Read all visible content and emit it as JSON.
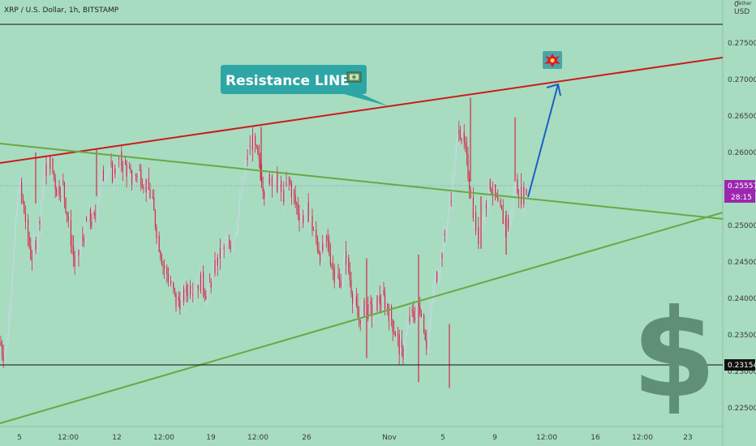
{
  "header": {
    "symbol": "XRP / U.S. Dollar, 1h, BITSTAMP",
    "top_right": "0",
    "currency_code": "USD",
    "currency_partial": "Tether"
  },
  "annotation": {
    "label": "Resistance LINE"
  },
  "price": {
    "current": "0.25557",
    "countdown": "28:15",
    "support": "0.23154"
  },
  "colors": {
    "background": "#a7dcc0",
    "candle_up": "#c0d9df",
    "candle_down": "#d8264a",
    "resistance_line": "#cc1b1b",
    "trend_line": "#6aa843",
    "arrow": "#1a5fc4",
    "callout": "#2ea6a6",
    "price_tag": "#9b27af",
    "dollar_sign": "#5f8f77"
  },
  "chart_data": {
    "type": "candlestick",
    "title": "XRP / U.S. Dollar, 1h, BITSTAMP",
    "y_axis": {
      "unit": "USD",
      "range": [
        0.2227,
        0.2812
      ],
      "ticks": [
        "0.27500",
        "0.27000",
        "0.26500",
        "0.26000",
        "0.25500",
        "0.25000",
        "0.24500",
        "0.24000",
        "0.23500",
        "0.23000",
        "0.22500"
      ]
    },
    "x_axis": {
      "ticks": [
        "5",
        "12:00",
        "12",
        "12:00",
        "19",
        "12:00",
        "26",
        "Nov",
        "5",
        "9",
        "12:00",
        "16",
        "12:00",
        "23"
      ]
    },
    "trend_lines": [
      {
        "name": "Resistance LINE",
        "from": {
          "x": "Oct 3",
          "y": 0.2591
        },
        "to": {
          "x": "Nov 25",
          "y": 0.2731
        }
      },
      {
        "name": "descending",
        "from": {
          "x": "Oct 3",
          "y": 0.2612
        },
        "to": {
          "x": "Nov 25",
          "y": 0.251
        }
      },
      {
        "name": "ascending",
        "from": {
          "x": "Oct 3",
          "y": 0.2225
        },
        "to": {
          "x": "Nov 25",
          "y": 0.2518
        }
      }
    ],
    "horizontal_lines": [
      0.2775,
      0.23154
    ],
    "projection": {
      "from": 0.2538,
      "to": 0.2694
    },
    "price_path": [
      [
        0,
        0.234
      ],
      [
        0.5,
        0.2325
      ],
      [
        1,
        0.233
      ],
      [
        2,
        0.245
      ],
      [
        3,
        0.256
      ],
      [
        4,
        0.251
      ],
      [
        5,
        0.2455
      ],
      [
        6,
        0.249
      ],
      [
        7,
        0.257
      ],
      [
        8,
        0.259
      ],
      [
        9,
        0.255
      ],
      [
        10,
        0.2555
      ],
      [
        11,
        0.25
      ],
      [
        12,
        0.244
      ],
      [
        13,
        0.248
      ],
      [
        14,
        0.251
      ],
      [
        15,
        0.2505
      ],
      [
        16,
        0.256
      ],
      [
        17,
        0.258
      ],
      [
        18,
        0.257
      ],
      [
        19,
        0.259
      ],
      [
        20,
        0.258
      ],
      [
        21,
        0.256
      ],
      [
        22,
        0.2575
      ],
      [
        23,
        0.256
      ],
      [
        24,
        0.254
      ],
      [
        25,
        0.249
      ],
      [
        26,
        0.2445
      ],
      [
        27,
        0.2425
      ],
      [
        28,
        0.2395
      ],
      [
        29,
        0.24
      ],
      [
        30,
        0.2415
      ],
      [
        31,
        0.242
      ],
      [
        32,
        0.2425
      ],
      [
        33,
        0.2405
      ],
      [
        34,
        0.244
      ],
      [
        35,
        0.246
      ],
      [
        36,
        0.247
      ],
      [
        37,
        0.248
      ],
      [
        38,
        0.252
      ],
      [
        39,
        0.258
      ],
      [
        40,
        0.262
      ],
      [
        41,
        0.259
      ],
      [
        42,
        0.255
      ],
      [
        43,
        0.257
      ],
      [
        44,
        0.256
      ],
      [
        45,
        0.254
      ],
      [
        46,
        0.256
      ],
      [
        47,
        0.253
      ],
      [
        48,
        0.251
      ],
      [
        49,
        0.252
      ],
      [
        50,
        0.249
      ],
      [
        51,
        0.246
      ],
      [
        52,
        0.248
      ],
      [
        53,
        0.244
      ],
      [
        54,
        0.242
      ],
      [
        55,
        0.246
      ],
      [
        56,
        0.241
      ],
      [
        57,
        0.237
      ],
      [
        58,
        0.239
      ],
      [
        59,
        0.238
      ],
      [
        60,
        0.2395
      ],
      [
        61,
        0.24
      ],
      [
        62,
        0.238
      ],
      [
        63,
        0.235
      ],
      [
        64,
        0.232
      ],
      [
        65,
        0.237
      ],
      [
        66,
        0.238
      ],
      [
        67,
        0.239
      ],
      [
        68,
        0.233
      ],
      [
        69,
        0.242
      ],
      [
        70,
        0.245
      ],
      [
        71,
        0.25
      ],
      [
        72,
        0.256
      ],
      [
        73,
        0.264
      ],
      [
        74,
        0.26
      ],
      [
        75,
        0.254
      ],
      [
        76,
        0.248
      ],
      [
        77,
        0.252
      ],
      [
        78,
        0.256
      ],
      [
        79,
        0.253
      ],
      [
        80,
        0.251
      ],
      [
        81,
        0.25
      ],
      [
        82,
        0.256
      ],
      [
        83,
        0.254
      ],
      [
        84,
        0.255
      ]
    ]
  }
}
